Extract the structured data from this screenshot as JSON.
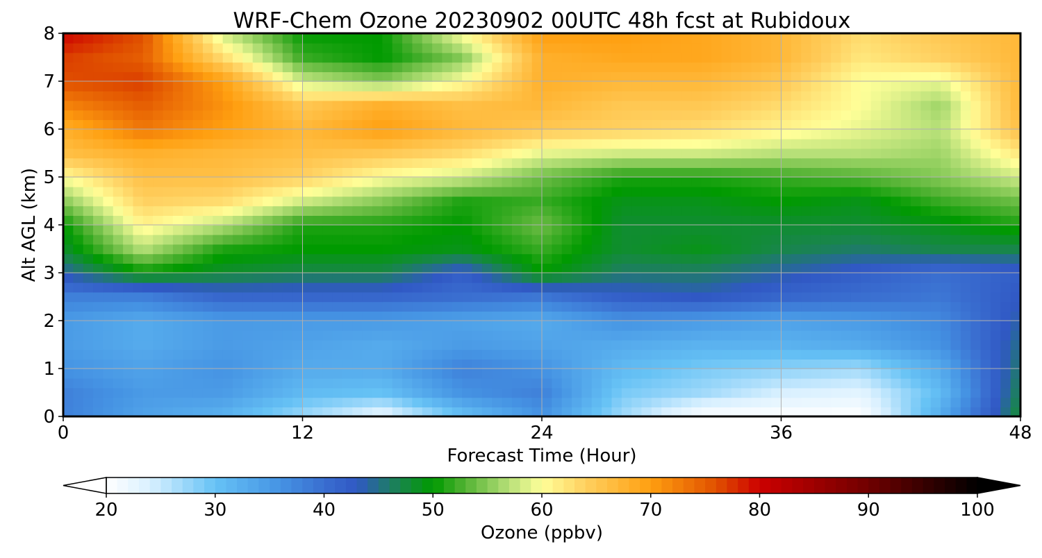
{
  "chart_data": {
    "type": "heatmap",
    "title": "WRF-Chem Ozone  20230902 00UTC 48h fcst at Rubidoux",
    "xlabel": "Forecast Time (Hour)",
    "ylabel": "Alt AGL (km)",
    "xlim": [
      0,
      48
    ],
    "ylim": [
      0,
      8
    ],
    "xticks": [
      0,
      12,
      24,
      36,
      48
    ],
    "yticks": [
      0,
      1,
      2,
      3,
      4,
      5,
      6,
      7,
      8
    ],
    "grid": true,
    "x": [
      0,
      4,
      8,
      12,
      16,
      20,
      24,
      28,
      32,
      36,
      40,
      44,
      48
    ],
    "y": [
      0,
      0.5,
      1,
      1.5,
      2,
      2.5,
      3,
      3.5,
      4,
      4.5,
      5,
      5.5,
      6,
      6.5,
      7,
      7.5,
      8
    ],
    "z": [
      [
        38,
        34,
        32,
        27,
        22,
        30,
        36,
        27,
        20,
        20,
        20,
        33,
        48
      ],
      [
        38,
        35,
        35,
        31,
        30,
        36,
        38,
        29,
        27,
        24,
        23,
        31,
        47
      ],
      [
        36,
        34,
        36,
        33,
        33,
        38,
        36,
        31,
        29,
        28,
        27,
        33,
        46
      ],
      [
        35,
        33,
        35,
        34,
        33,
        35,
        34,
        33,
        32,
        32,
        33,
        36,
        45
      ],
      [
        35,
        33,
        35,
        35,
        35,
        34,
        33,
        36,
        35,
        34,
        35,
        37,
        44
      ],
      [
        38,
        38,
        41,
        41,
        41,
        40,
        39,
        42,
        43,
        41,
        40,
        39,
        43
      ],
      [
        44,
        50,
        48,
        47,
        47,
        42,
        50,
        46,
        46,
        44,
        42,
        40,
        42
      ],
      [
        48,
        57,
        51,
        50,
        50,
        49,
        52,
        48,
        49,
        47,
        46,
        47,
        47
      ],
      [
        50,
        61,
        57,
        51,
        51,
        50,
        54,
        48,
        48,
        48,
        48,
        49,
        51
      ],
      [
        55,
        64,
        63,
        58,
        55,
        51,
        52,
        49,
        49,
        50,
        49,
        52,
        54
      ],
      [
        60,
        66,
        66,
        64,
        60,
        58,
        54,
        51,
        51,
        52,
        53,
        55,
        58
      ],
      [
        66,
        68,
        67,
        66,
        65,
        63,
        59,
        58,
        58,
        57,
        57,
        56,
        62
      ],
      [
        68,
        73,
        70,
        67,
        70,
        67,
        65,
        64,
        63,
        61,
        59,
        57,
        66
      ],
      [
        72,
        75,
        71,
        65,
        68,
        66,
        67,
        65,
        65,
        63,
        60,
        56,
        67
      ],
      [
        76,
        77,
        70,
        58,
        55,
        60,
        68,
        67,
        67,
        65,
        60,
        59,
        67
      ],
      [
        77,
        75,
        63,
        52,
        50,
        55,
        68,
        69,
        69,
        67,
        62,
        64,
        67
      ],
      [
        80,
        76,
        58,
        50,
        50,
        60,
        70,
        70,
        69,
        67,
        63,
        65,
        67
      ]
    ],
    "colorbar": {
      "label": "Ozone  (ppbv)",
      "min": 20,
      "max": 100,
      "ticks": [
        20,
        30,
        40,
        50,
        60,
        70,
        80,
        90,
        100
      ],
      "extend": "both",
      "stops": [
        {
          "v": 20,
          "c": "#ffffff"
        },
        {
          "v": 24,
          "c": "#d9f0ff"
        },
        {
          "v": 30,
          "c": "#66c2f5"
        },
        {
          "v": 36,
          "c": "#4593e3"
        },
        {
          "v": 40,
          "c": "#3a6ed0"
        },
        {
          "v": 43,
          "c": "#3058c4"
        },
        {
          "v": 47,
          "c": "#18864a"
        },
        {
          "v": 50,
          "c": "#009a00"
        },
        {
          "v": 53,
          "c": "#55b335"
        },
        {
          "v": 57,
          "c": "#b7e078"
        },
        {
          "v": 60,
          "c": "#ffff99"
        },
        {
          "v": 64,
          "c": "#ffd060"
        },
        {
          "v": 70,
          "c": "#ff9f10"
        },
        {
          "v": 76,
          "c": "#e05000"
        },
        {
          "v": 80,
          "c": "#cc0000"
        },
        {
          "v": 90,
          "c": "#700000"
        },
        {
          "v": 100,
          "c": "#000000"
        }
      ]
    }
  }
}
